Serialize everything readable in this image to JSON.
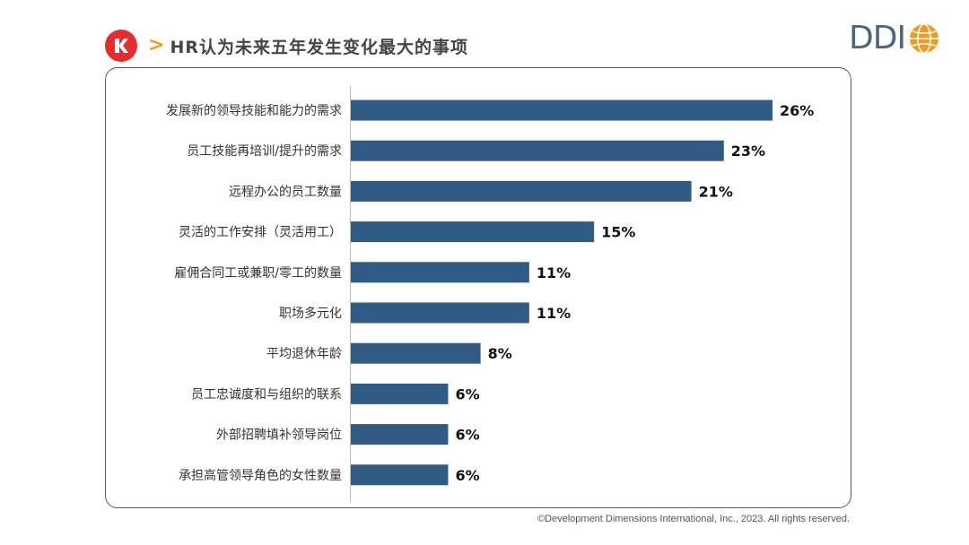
{
  "header": {
    "chevron": ">",
    "title": "HR认为未来五年发生变化最大的事项"
  },
  "brand": {
    "logo_text": "DDI"
  },
  "colors": {
    "bar": "#2f5b84",
    "accent": "#f39a1e",
    "badge": "#e52d2d"
  },
  "chart_data": {
    "type": "bar",
    "orientation": "horizontal",
    "title": "HR认为未来五年发生变化最大的事项",
    "categories": [
      "发展新的领导技能和能力的需求",
      "员工技能再培训/提升的需求",
      "远程办公的员工数量",
      "灵活的工作安排（灵活用工）",
      "雇佣合同工或兼职/零工的数量",
      "职场多元化",
      "平均退休年龄",
      "员工忠诚度和与组织的联系",
      "外部招聘填补领导岗位",
      "承担高管领导角色的女性数量"
    ],
    "values": [
      26,
      23,
      21,
      15,
      11,
      11,
      8,
      6,
      6,
      6
    ],
    "value_labels": [
      "26%",
      "23%",
      "21%",
      "15%",
      "11%",
      "11%",
      "8%",
      "6%",
      "6%",
      "6%"
    ],
    "unit": "%",
    "xlim": [
      0,
      26
    ]
  },
  "footer": {
    "copyright": "©Development Dimensions International, Inc., 2023. All rights reserved."
  }
}
